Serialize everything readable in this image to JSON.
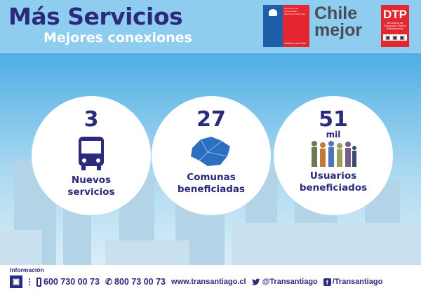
{
  "header": {
    "title": "Más Servicios",
    "subtitle": "Mejores conexiones",
    "logos": {
      "gov_text": "Ministerio de Transportes y Telecomunicaciones",
      "gov_footer": "Gobierno de Chile",
      "chile_mejor_1": "Chile",
      "chile_mejor_2": "mejor",
      "dtp": "DTP",
      "dtp_sub": "Directorio de Transporte Público Metropolitano"
    }
  },
  "stats": [
    {
      "value": "3",
      "unit": "",
      "label_1": "Nuevos",
      "label_2": "servicios",
      "icon": "bus-icon"
    },
    {
      "value": "27",
      "unit": "",
      "label_1": "Comunas",
      "label_2": "beneficiadas",
      "icon": "map-icon"
    },
    {
      "value": "51",
      "unit": "mil",
      "label_1": "Usuarios",
      "label_2": "beneficiados",
      "icon": "people-icon"
    }
  ],
  "footer": {
    "info_label": "Información",
    "phone_mobile": "600 730 00 73",
    "phone_fixed": "800 73 00 73",
    "website": "www.transantiago.cl",
    "twitter": "@Transantiago",
    "facebook": "/Transantiago"
  },
  "colors": {
    "navy": "#2c2a7c",
    "sky": "#8ecdf0",
    "red": "#e3262f"
  }
}
